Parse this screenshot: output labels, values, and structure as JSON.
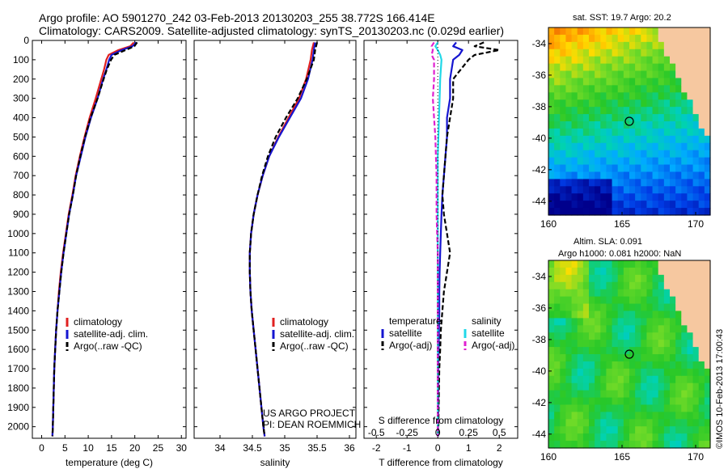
{
  "title_line1": "Argo profile: AO 5901270_242 03-Feb-2013 20130203_255 38.772S 166.414E",
  "title_line2": "Climatology: CARS2009. Satellite-adjusted climatology: synTS_20130203.nc (0.029d earlier)",
  "colors": {
    "climatology": "#e02020",
    "satellite": "#1515d0",
    "argo": "#000000",
    "sat_s": "#20d8e8",
    "argo_s": "#e020d0"
  },
  "depth_ticks": [
    "0",
    "100",
    "200",
    "300",
    "400",
    "500",
    "600",
    "700",
    "800",
    "900",
    "1000",
    "1100",
    "1200",
    "1300",
    "1400",
    "1500",
    "1600",
    "1700",
    "1800",
    "1900",
    "2000"
  ],
  "project_text": [
    "US ARGO PROJECT",
    "PI: DEAN ROEMMICH"
  ],
  "chart_data": [
    {
      "type": "line",
      "xlabel": "temperature (deg C)",
      "xlim": [
        -2,
        31
      ],
      "xticks": [
        "0",
        "5",
        "10",
        "15",
        "20",
        "25",
        "30"
      ],
      "ylim": [
        2060,
        0
      ],
      "legend": [
        "climatology",
        "satellite-adj. clim.",
        "Argo(..raw -QC)"
      ],
      "depth": [
        10,
        30,
        50,
        75,
        100,
        150,
        200,
        300,
        400,
        500,
        600,
        700,
        800,
        900,
        1000,
        1100,
        1200,
        1300,
        1400,
        1500,
        1600,
        1700,
        1800,
        1900,
        2000,
        2050
      ],
      "series": [
        {
          "name": "climatology",
          "values": [
            19.8,
            19.0,
            16.5,
            14.4,
            13.9,
            13.4,
            12.8,
            11.6,
            10.3,
            9.2,
            8.2,
            7.3,
            6.6,
            5.8,
            5.2,
            4.6,
            4.1,
            3.7,
            3.4,
            3.1,
            2.9,
            2.7,
            2.6,
            2.5,
            2.4,
            2.3
          ]
        },
        {
          "name": "satellite-adj. clim.",
          "values": [
            20.3,
            19.5,
            17.2,
            15.0,
            14.5,
            13.9,
            13.2,
            12.0,
            10.6,
            9.4,
            8.4,
            7.4,
            6.7,
            5.9,
            5.3,
            4.7,
            4.2,
            3.8,
            3.4,
            3.1,
            2.9,
            2.7,
            2.6,
            2.5,
            2.4,
            2.3
          ]
        },
        {
          "name": "Argo(..raw -QC)",
          "values": [
            20.5,
            19.9,
            18.0,
            15.6,
            14.9,
            14.0,
            13.3,
            12.0,
            10.5,
            9.3,
            8.3,
            7.4,
            6.7,
            5.9,
            5.3,
            4.7,
            4.2,
            3.8,
            3.4,
            3.1,
            2.9,
            2.7,
            2.6,
            2.5,
            2.4,
            2.3
          ]
        }
      ]
    },
    {
      "type": "line",
      "xlabel": "salinity",
      "xlim": [
        33.6,
        36.1
      ],
      "xticks": [
        "34",
        "34.5",
        "35",
        "35.5",
        "36"
      ],
      "ylim": [
        2060,
        0
      ],
      "legend": [
        "climatology",
        "satellite-adj. clim.",
        "Argo(..raw -QC)"
      ],
      "depth": [
        10,
        50,
        100,
        200,
        300,
        400,
        500,
        600,
        700,
        800,
        900,
        1000,
        1100,
        1200,
        1300,
        1400,
        1500,
        1600,
        1700,
        1800,
        1900,
        2000,
        2050
      ],
      "series": [
        {
          "name": "climatology",
          "values": [
            35.45,
            35.42,
            35.4,
            35.33,
            35.22,
            35.06,
            34.9,
            34.76,
            34.66,
            34.58,
            34.52,
            34.48,
            34.46,
            34.46,
            34.47,
            34.49,
            34.52,
            34.55,
            34.58,
            34.61,
            34.64,
            34.67,
            34.69
          ]
        },
        {
          "name": "satellite-adj. clim.",
          "values": [
            35.47,
            35.45,
            35.43,
            35.36,
            35.25,
            35.08,
            34.91,
            34.76,
            34.66,
            34.58,
            34.52,
            34.48,
            34.46,
            34.46,
            34.47,
            34.49,
            34.52,
            34.55,
            34.58,
            34.61,
            34.64,
            34.67,
            34.69
          ]
        },
        {
          "name": "Argo(..raw -QC)",
          "values": [
            35.5,
            35.47,
            35.45,
            35.34,
            35.2,
            35.02,
            34.86,
            34.74,
            34.65,
            34.58,
            34.52,
            34.48,
            34.46,
            34.46,
            34.47,
            34.49,
            34.52,
            34.55,
            34.58,
            34.61,
            34.64,
            34.67,
            34.69
          ]
        }
      ]
    },
    {
      "type": "line",
      "xlabel": "T difference from climatology",
      "xlabel_top": "S difference from climatology",
      "xlim": [
        -2.4,
        2.6
      ],
      "xticks": [
        "-2",
        "-1",
        "0",
        "1",
        "2"
      ],
      "xticks_top": [
        "-0.5",
        "-0.25",
        "0",
        "0.25",
        "0.5"
      ],
      "ylim": [
        2060,
        0
      ],
      "legend_t_title": "temperature",
      "legend_t": [
        "satellite",
        "Argo(-adj)"
      ],
      "legend_s_title": "salinity",
      "legend_s": [
        "satellite",
        "Argo(-adj)"
      ],
      "depth": [
        10,
        30,
        50,
        75,
        100,
        200,
        300,
        400,
        500,
        600,
        700,
        800,
        900,
        1000,
        1100,
        1200,
        1300,
        1400,
        1500,
        1600,
        1700,
        1800,
        1900,
        2000,
        2050
      ],
      "series": [
        {
          "name": "T satellite",
          "values": [
            0.6,
            0.5,
            0.8,
            0.7,
            0.5,
            0.4,
            0.4,
            0.3,
            0.3,
            0.25,
            0.2,
            0.15,
            0.12,
            0.1,
            0.08,
            0.06,
            0.05,
            0.05,
            0.04,
            0.03,
            0.02,
            0.02,
            0.02,
            0.01,
            0.01
          ]
        },
        {
          "name": "T Argo(-adj)",
          "values": [
            1.5,
            1.2,
            2.0,
            1.2,
            1.0,
            0.5,
            0.5,
            0.4,
            0.3,
            0.25,
            0.2,
            0.15,
            0.2,
            0.3,
            0.4,
            0.3,
            0.2,
            0.15,
            0.1,
            0.08,
            0.05,
            0.04,
            0.03,
            0.02,
            0.01
          ]
        },
        {
          "name": "S satellite",
          "values": [
            0.0,
            -0.02,
            0.0,
            0.02,
            0.03,
            0.02,
            0.015,
            0.01,
            0.005,
            0.0,
            0.0,
            0.0,
            0.0,
            0.0,
            0.0,
            0.0,
            0.0,
            0.0,
            0.0,
            0.0,
            0.0,
            0.0,
            0.0,
            0.0,
            0.0
          ]
        },
        {
          "name": "S Argo(-adj)",
          "values": [
            -0.03,
            -0.05,
            -0.04,
            -0.05,
            -0.03,
            -0.03,
            -0.04,
            -0.03,
            -0.02,
            -0.015,
            -0.01,
            -0.01,
            -0.01,
            -0.005,
            0.0,
            0.0,
            0.0,
            0.0,
            0.0,
            0.0,
            0.0,
            0.0,
            0.0,
            0.0,
            0.0
          ]
        }
      ]
    },
    {
      "type": "heatmap",
      "title": "sat. SST: 19.7 Argo: 20.2",
      "xticks": [
        "160",
        "165",
        "170"
      ],
      "yticks": [
        "-34",
        "-36",
        "-38",
        "-40",
        "-42",
        "-44"
      ]
    },
    {
      "type": "heatmap",
      "title_line1": "Altim. SLA: 0.091",
      "title_line2": "Argo h1000: 0.081 h2000: NaN",
      "xticks": [
        "160",
        "165",
        "170"
      ],
      "yticks": [
        "-34",
        "-36",
        "-38",
        "-40",
        "-42",
        "-44"
      ]
    }
  ],
  "side_label": "©IMOS 10-Feb-2013 17:00:43"
}
